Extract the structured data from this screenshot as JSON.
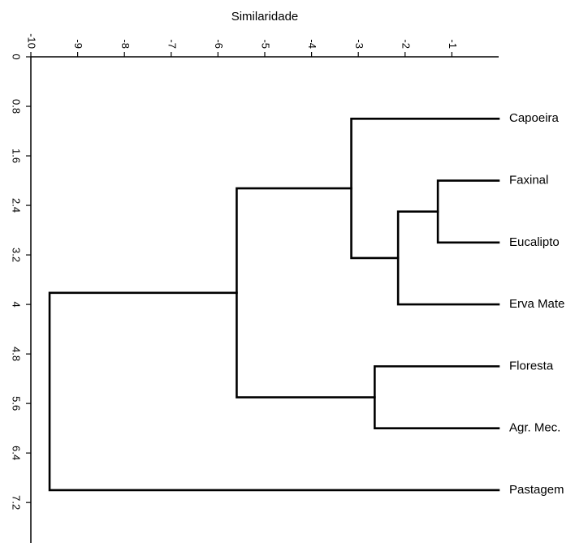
{
  "chart_data": {
    "type": "dendrogram",
    "title": "Similaridade",
    "xlim": [
      -10,
      0
    ],
    "ylim": [
      0,
      7.84
    ],
    "xticks": [
      -10,
      -9,
      -8,
      -7,
      -6,
      -5,
      -4,
      -3,
      -2,
      -1
    ],
    "yticks": [
      0,
      0.8,
      1.6,
      2.4,
      3.2,
      4,
      4.8,
      5.6,
      6.4,
      7.2
    ],
    "leaves": [
      {
        "name": "Capoeira",
        "y": 1.0
      },
      {
        "name": "Faxinal",
        "y": 2.0
      },
      {
        "name": "Eucalipto",
        "y": 3.0
      },
      {
        "name": "Erva Mate",
        "y": 4.0
      },
      {
        "name": "Floresta",
        "y": 5.0
      },
      {
        "name": "Agr. Mec.",
        "y": 6.0
      },
      {
        "name": "Pastagem",
        "y": 7.0
      }
    ],
    "merges": [
      {
        "id": "m1",
        "left": "Faxinal",
        "right": "Eucalipto",
        "similarity": -1.3
      },
      {
        "id": "m2",
        "left": "m1",
        "right": "Erva Mate",
        "similarity": -2.15
      },
      {
        "id": "m3",
        "left": "Capoeira",
        "right": "m2",
        "similarity": -3.15
      },
      {
        "id": "m4",
        "left": "Floresta",
        "right": "Agr. Mec.",
        "similarity": -2.65
      },
      {
        "id": "m5",
        "left": "m3",
        "right": "m4",
        "similarity": -5.6
      },
      {
        "id": "m6",
        "left": "m5",
        "right": "Pastagem",
        "similarity": -9.6
      }
    ]
  }
}
